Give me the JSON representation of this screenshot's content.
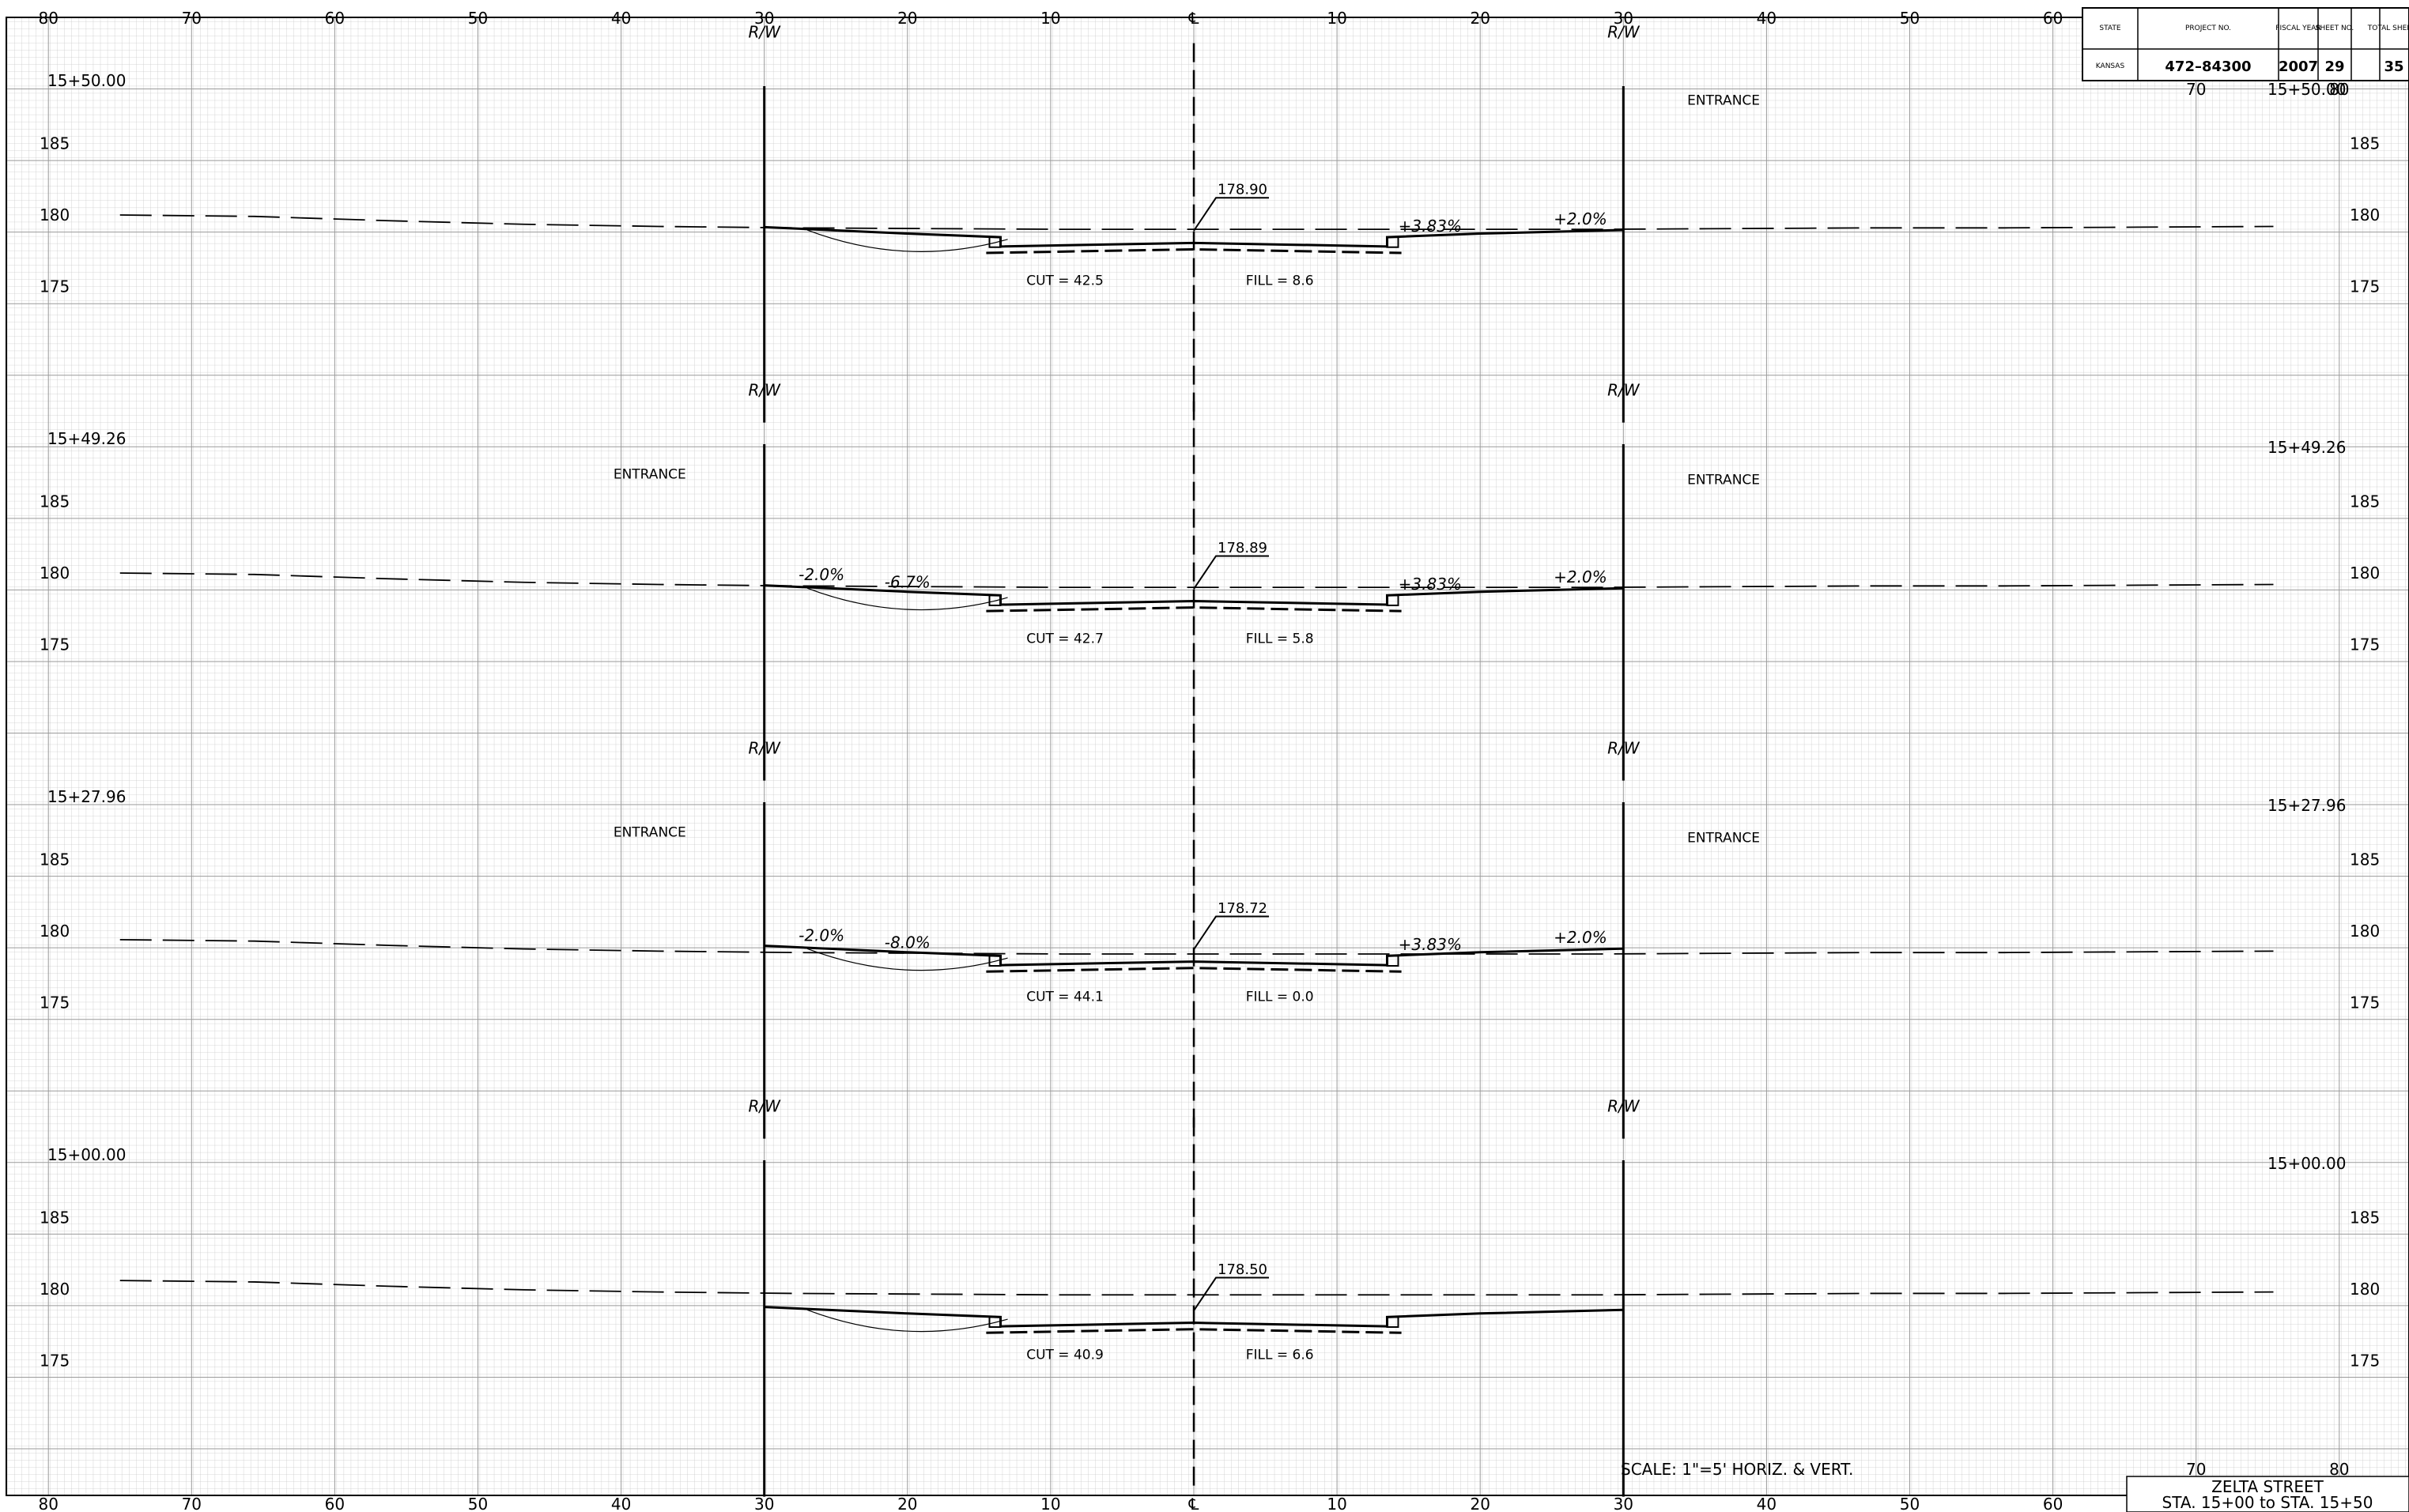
{
  "title_block": {
    "headers": {
      "state": "STATE",
      "project": "PROJECT NO.",
      "fiscal": "FISCAL YEAR",
      "sheet": "SHEET NO.",
      "total": "TOTAL SHEETS"
    },
    "values": {
      "state": "KANSAS",
      "project": "472–84300",
      "fiscal": "2007",
      "sheet": "29",
      "total": "35"
    }
  },
  "offset_scale": {
    "top_labels": [
      "80",
      "70",
      "60",
      "50",
      "40",
      "30",
      "20",
      "10",
      "℄",
      "10",
      "20",
      "30",
      "40",
      "50",
      "60"
    ],
    "top_labels_extra": [
      "70",
      "80"
    ],
    "bottom_labels": [
      "80",
      "70",
      "60",
      "50",
      "40",
      "30",
      "20",
      "10",
      "℄",
      "10",
      "20",
      "30",
      "40",
      "50",
      "60",
      "70",
      "80"
    ]
  },
  "sections": [
    {
      "station": "15+50.00",
      "elev_labels": [
        "185",
        "180",
        "175"
      ],
      "rw_left": "R/W",
      "rw_right": "R/W",
      "center_elev": "178.90",
      "cut": "CUT = 42.5",
      "fill": "FILL = 8.6",
      "slopes_left": [],
      "slopes_right": [
        "+3.83%",
        "+2.0%"
      ],
      "entrance_left": "",
      "entrance_right": "ENTRANCE"
    },
    {
      "station": "15+49.26",
      "elev_labels": [
        "185",
        "180",
        "175"
      ],
      "rw_left": "R/W",
      "rw_right": "R/W",
      "center_elev": "178.89",
      "cut": "CUT = 42.7",
      "fill": "FILL = 5.8",
      "slopes_left": [
        "-2.0%",
        "-6.7%"
      ],
      "slopes_right": [
        "+3.83%",
        "+2.0%"
      ],
      "entrance_left": "ENTRANCE",
      "entrance_right": "ENTRANCE"
    },
    {
      "station": "15+27.96",
      "elev_labels": [
        "185",
        "180",
        "175"
      ],
      "rw_left": "R/W",
      "rw_right": "R/W",
      "center_elev": "178.72",
      "cut": "CUT = 44.1",
      "fill": "FILL = 0.0",
      "slopes_left": [
        "-2.0%",
        "-8.0%"
      ],
      "slopes_right": [
        "+3.83%",
        "+2.0%"
      ],
      "entrance_left": "ENTRANCE",
      "entrance_right": "ENTRANCE"
    },
    {
      "station": "15+00.00",
      "elev_labels": [
        "185",
        "180",
        "175"
      ],
      "rw_left": "R/W",
      "rw_right": "R/W",
      "center_elev": "178.50",
      "cut": "CUT = 40.9",
      "fill": "FILL = 6.6",
      "slopes_left": [],
      "slopes_right": [],
      "entrance_left": "",
      "entrance_right": ""
    }
  ],
  "scale_note": "SCALE: 1\"=5' HORIZ. & VERT.",
  "sheet_title": {
    "line1": "ZELTA STREET",
    "line2": "STA. 15+00 to STA. 15+50"
  }
}
